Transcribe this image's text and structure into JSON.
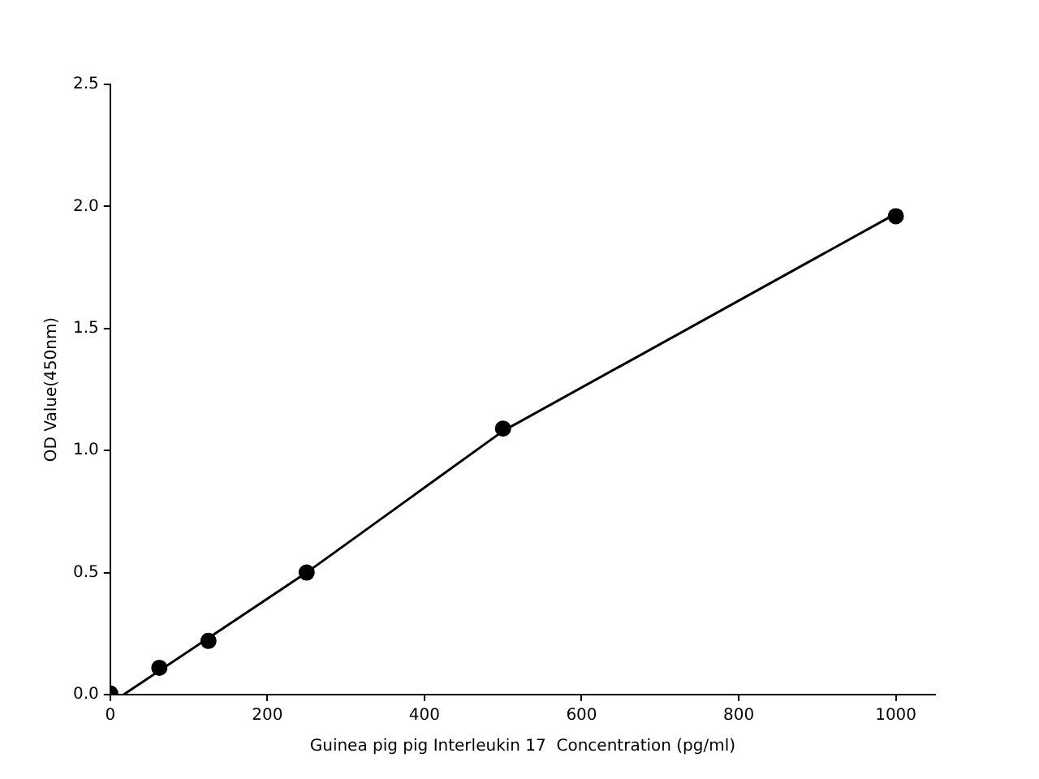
{
  "chart_data": {
    "type": "scatter",
    "xlabel": "Guinea pig pig Interleukin 17  Concentration (pg/ml)",
    "ylabel": "OD Value(450nm)",
    "xlim": [
      0,
      1050
    ],
    "ylim": [
      0,
      2.5
    ],
    "xticks": [
      0,
      200,
      400,
      600,
      800,
      1000
    ],
    "yticks": [
      {
        "value": 0,
        "label": "0.0"
      },
      {
        "value": 0.5,
        "label": "0.5"
      },
      {
        "value": 1,
        "label": "1.0"
      },
      {
        "value": 1.5,
        "label": "1.5"
      },
      {
        "value": 2,
        "label": "2.0"
      },
      {
        "value": 2.5,
        "label": "2.5"
      }
    ],
    "grid": false,
    "legend": false,
    "marker": "circle",
    "series": [
      {
        "type": "scatter",
        "color": "#000000",
        "x": [
          0,
          62.5,
          125,
          250,
          500,
          1000
        ],
        "values": [
          0.005,
          0.11,
          0.22,
          0.5,
          1.09,
          1.96
        ]
      },
      {
        "type": "line",
        "color": "#000000",
        "marker": "none",
        "line_style": "solid",
        "x": [
          17,
          250,
          500,
          1000
        ],
        "values": [
          0,
          0.5,
          1.08,
          1.97
        ]
      }
    ]
  }
}
